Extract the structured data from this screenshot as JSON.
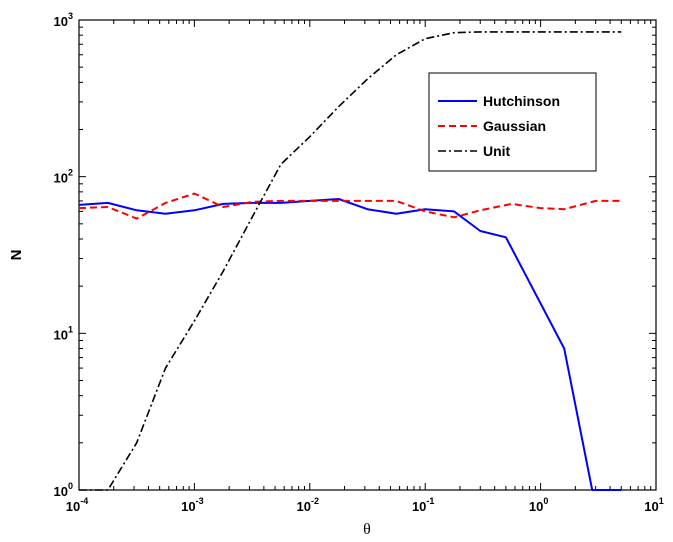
{
  "chart_data": {
    "type": "line",
    "title": "",
    "xlabel": "θ",
    "ylabel": "N",
    "xscale": "log",
    "yscale": "log",
    "xlim": [
      0.0001,
      10
    ],
    "ylim": [
      1,
      1000
    ],
    "grid": false,
    "legend_position": "top-right",
    "x_ticks": [
      {
        "base": "10",
        "exp": "-4",
        "value": 0.0001
      },
      {
        "base": "10",
        "exp": "-3",
        "value": 0.001
      },
      {
        "base": "10",
        "exp": "-2",
        "value": 0.01
      },
      {
        "base": "10",
        "exp": "-1",
        "value": 0.1
      },
      {
        "base": "10",
        "exp": "0",
        "value": 1
      },
      {
        "base": "10",
        "exp": "1",
        "value": 10
      }
    ],
    "y_ticks": [
      {
        "base": "10",
        "exp": "0",
        "value": 1
      },
      {
        "base": "10",
        "exp": "1",
        "value": 10
      },
      {
        "base": "10",
        "exp": "2",
        "value": 100
      },
      {
        "base": "10",
        "exp": "3",
        "value": 1000
      }
    ],
    "series": [
      {
        "name": "Hutchinson",
        "color": "#0000ff",
        "style": "solid",
        "points": [
          [
            0.0001,
            66
          ],
          [
            0.000178,
            68
          ],
          [
            0.000316,
            61
          ],
          [
            0.000562,
            58
          ],
          [
            0.001,
            61
          ],
          [
            0.00178,
            67
          ],
          [
            0.00316,
            68
          ],
          [
            0.00562,
            68
          ],
          [
            0.01,
            70
          ],
          [
            0.0178,
            72
          ],
          [
            0.0316,
            62
          ],
          [
            0.0562,
            58
          ],
          [
            0.1,
            62
          ],
          [
            0.178,
            60
          ],
          [
            0.3,
            45
          ],
          [
            0.5,
            41
          ],
          [
            1.6,
            8
          ],
          [
            2.8,
            1
          ],
          [
            5,
            1
          ]
        ]
      },
      {
        "name": "Gaussian",
        "color": "#ff0000",
        "style": "dashed",
        "points": [
          [
            0.0001,
            63
          ],
          [
            0.000178,
            64
          ],
          [
            0.000316,
            54
          ],
          [
            0.000562,
            68
          ],
          [
            0.001,
            78
          ],
          [
            0.00178,
            64
          ],
          [
            0.00316,
            69
          ],
          [
            0.00562,
            70
          ],
          [
            0.01,
            70
          ],
          [
            0.0178,
            70
          ],
          [
            0.0316,
            70
          ],
          [
            0.0562,
            70
          ],
          [
            0.1,
            60
          ],
          [
            0.178,
            55
          ],
          [
            0.3,
            61
          ],
          [
            0.562,
            67
          ],
          [
            1,
            63
          ],
          [
            1.6,
            62
          ],
          [
            3,
            70
          ],
          [
            5,
            70
          ]
        ]
      },
      {
        "name": "Unit",
        "color": "#000000",
        "style": "dashdot",
        "points": [
          [
            0.0001,
            1
          ],
          [
            0.000178,
            1
          ],
          [
            0.000316,
            2
          ],
          [
            0.000562,
            6
          ],
          [
            0.001,
            12
          ],
          [
            0.00178,
            25
          ],
          [
            0.00316,
            55
          ],
          [
            0.00562,
            120
          ],
          [
            0.01,
            180
          ],
          [
            0.0178,
            280
          ],
          [
            0.0316,
            420
          ],
          [
            0.0562,
            600
          ],
          [
            0.1,
            760
          ],
          [
            0.178,
            830
          ],
          [
            0.3,
            840
          ],
          [
            1,
            840
          ],
          [
            5,
            840
          ]
        ]
      }
    ]
  }
}
